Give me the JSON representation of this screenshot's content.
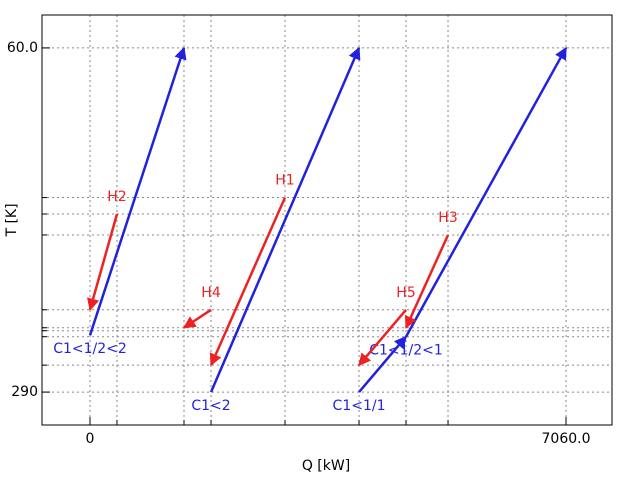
{
  "chart_data": {
    "type": "arrows",
    "x_label": "Q [kW]",
    "y_label": "T [K]",
    "xlim": [
      -712,
      7742
    ],
    "ylim": [
      312,
      38
    ],
    "xticks": [
      0,
      {
        "value": 7060,
        "label": "7060.0"
      }
    ],
    "yticks": [
      {
        "value": 60,
        "label": "60.0"
      },
      290
    ],
    "minor_xticks": [
      400,
      1394,
      1795,
      2892,
      3990,
      4687,
      5310
    ],
    "minor_yticks": [
      160,
      171,
      185,
      235,
      247,
      249,
      253,
      272
    ],
    "grid": true,
    "series": [
      {
        "name": "C1<1/2<2",
        "color": "#2222dd",
        "x": [
          0,
          1394
        ],
        "values": [
          252,
          60
        ]
      },
      {
        "name": "C1<2",
        "color": "#2222dd",
        "x": [
          1795,
          3990
        ],
        "values": [
          290,
          60
        ]
      },
      {
        "name": "C1<1/1",
        "color": "#2222dd",
        "x": [
          3990,
          4687
        ],
        "values": [
          290,
          253
        ]
      },
      {
        "name": "C1<1/2<1",
        "color": "#2222dd",
        "x": [
          4687,
          7060
        ],
        "values": [
          253,
          60
        ]
      },
      {
        "name": "H2",
        "color": "#ee2222",
        "x": [
          400,
          0
        ],
        "values": [
          171,
          235
        ]
      },
      {
        "name": "H4",
        "color": "#ee2222",
        "x": [
          1795,
          1394
        ],
        "values": [
          235,
          247
        ]
      },
      {
        "name": "H1",
        "color": "#ee2222",
        "x": [
          2892,
          1795
        ],
        "values": [
          160,
          272
        ]
      },
      {
        "name": "H5",
        "color": "#ee2222",
        "x": [
          4687,
          3990
        ],
        "values": [
          235,
          272
        ]
      },
      {
        "name": "H3",
        "color": "#ee2222",
        "x": [
          5310,
          4687
        ],
        "values": [
          185,
          247
        ]
      }
    ]
  }
}
